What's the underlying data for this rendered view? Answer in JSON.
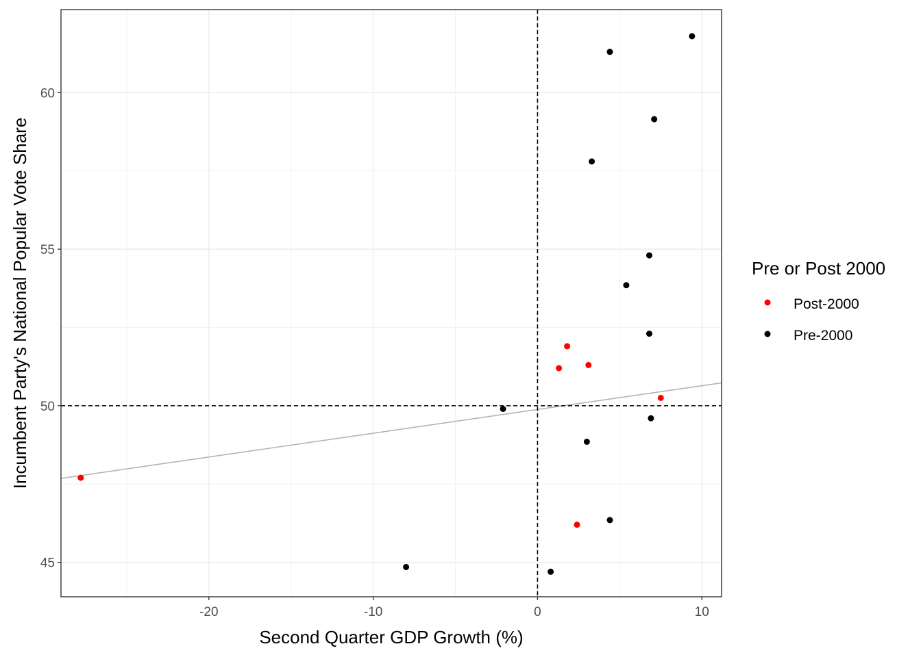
{
  "chart_data": {
    "type": "scatter",
    "xlabel": "Second Quarter GDP Growth (%)",
    "ylabel": "Incumbent Party's National Popular Vote Share",
    "xlim": [
      -29.0,
      11.2
    ],
    "ylim": [
      43.9,
      62.65
    ],
    "x_ticks": [
      -20,
      -10,
      0,
      10
    ],
    "y_ticks": [
      45,
      50,
      55,
      60
    ],
    "x_tick_labels": [
      "-20",
      "-10",
      "0",
      "10"
    ],
    "y_tick_labels": [
      "45",
      "50",
      "55",
      "60"
    ],
    "grid": true,
    "reference_lines": {
      "x": 0,
      "y": 50,
      "style": "dashed"
    },
    "trend_line": {
      "x": [
        -29.0,
        11.2
      ],
      "y": [
        47.68,
        50.73
      ],
      "color": "#b3b3b3"
    },
    "legend": {
      "title": "Pre or Post 2000",
      "placement": "right",
      "entries": [
        {
          "label": "Post-2000",
          "color": "#ff0000"
        },
        {
          "label": "Pre-2000",
          "color": "#000000"
        }
      ]
    },
    "series": [
      {
        "name": "Post-2000",
        "color": "#ff0000",
        "points": [
          {
            "x": -27.8,
            "y": 47.7
          },
          {
            "x": 1.3,
            "y": 51.2
          },
          {
            "x": 1.8,
            "y": 51.9
          },
          {
            "x": 3.1,
            "y": 51.3
          },
          {
            "x": 2.4,
            "y": 46.2
          },
          {
            "x": 7.5,
            "y": 50.25
          }
        ]
      },
      {
        "name": "Pre-2000",
        "color": "#000000",
        "points": [
          {
            "x": 9.4,
            "y": 61.8
          },
          {
            "x": 4.4,
            "y": 61.3
          },
          {
            "x": 7.1,
            "y": 59.15
          },
          {
            "x": 3.3,
            "y": 57.8
          },
          {
            "x": 6.8,
            "y": 54.8
          },
          {
            "x": 5.4,
            "y": 53.85
          },
          {
            "x": 6.8,
            "y": 52.3
          },
          {
            "x": -2.1,
            "y": 49.9
          },
          {
            "x": 6.9,
            "y": 49.6
          },
          {
            "x": 3.0,
            "y": 48.85
          },
          {
            "x": 4.4,
            "y": 46.35
          },
          {
            "x": -8.0,
            "y": 44.85
          },
          {
            "x": 0.8,
            "y": 44.7
          }
        ]
      }
    ]
  }
}
